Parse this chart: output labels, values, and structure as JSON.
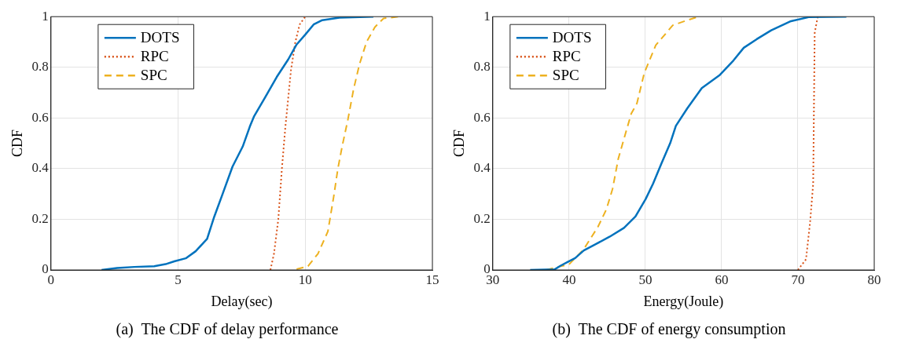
{
  "chart_data": [
    {
      "type": "line",
      "xlabel": "Delay(sec)",
      "ylabel": "CDF",
      "annotations": [
        "(a)  The CDF of delay performance"
      ],
      "xlim": [
        0,
        15
      ],
      "xticks": [
        0,
        5,
        10,
        15
      ],
      "ylim": [
        0,
        1
      ],
      "yticks": [
        0,
        0.2,
        0.4,
        0.6,
        0.8,
        1
      ],
      "grid": true,
      "legend": "top left",
      "series": [
        {
          "name": "DOTS",
          "color": "#0072bd",
          "line_style": "solid",
          "x": [
            1.99,
            2.6,
            3.28,
            4.06,
            4.51,
            4.85,
            5.3,
            5.69,
            6.14,
            6.42,
            6.75,
            7.14,
            7.54,
            7.82,
            7.98,
            8.43,
            8.88,
            9.33,
            9.66,
            10.0,
            10.33,
            10.67,
            11.34,
            12.68
          ],
          "values": [
            0,
            0.008,
            0.012,
            0.015,
            0.023,
            0.034,
            0.046,
            0.074,
            0.123,
            0.21,
            0.3,
            0.408,
            0.487,
            0.566,
            0.605,
            0.683,
            0.762,
            0.831,
            0.89,
            0.929,
            0.969,
            0.986,
            0.996,
            1
          ]
        },
        {
          "name": "RPC",
          "color": "#d95319",
          "line_style": "dotted",
          "x": [
            8.63,
            8.77,
            8.94,
            9.08,
            9.22,
            9.44,
            9.61,
            9.78,
            10.0
          ],
          "values": [
            0,
            0.064,
            0.2,
            0.398,
            0.566,
            0.79,
            0.9,
            0.969,
            1
          ]
        },
        {
          "name": "SPC",
          "color": "#edb120",
          "line_style": "dashed",
          "x": [
            9.66,
            10.11,
            10.5,
            10.89,
            11.12,
            11.28,
            11.45,
            11.68,
            11.9,
            12.13,
            12.41,
            12.74,
            13.08,
            13.7
          ],
          "values": [
            0.003,
            0.015,
            0.064,
            0.152,
            0.29,
            0.398,
            0.487,
            0.595,
            0.713,
            0.811,
            0.9,
            0.959,
            0.993,
            1
          ]
        }
      ]
    },
    {
      "type": "line",
      "xlabel": "Energy(Joule)",
      "ylabel": "CDF",
      "annotations": [
        "(b)  The CDF of energy consumption"
      ],
      "xlim": [
        30,
        80
      ],
      "xticks": [
        30,
        40,
        50,
        60,
        70,
        80
      ],
      "ylim": [
        0,
        1
      ],
      "yticks": [
        0,
        0.2,
        0.4,
        0.6,
        0.8,
        1
      ],
      "grid": true,
      "legend": "top left",
      "series": [
        {
          "name": "DOTS",
          "color": "#0072bd",
          "line_style": "solid",
          "x": [
            34.9,
            38.1,
            38.9,
            39.85,
            40.8,
            41.93,
            43.44,
            45.3,
            47.2,
            48.7,
            50.04,
            51.0,
            52.1,
            53.25,
            54.0,
            55.5,
            57.4,
            59.7,
            61.55,
            62.9,
            64.6,
            66.5,
            68.98,
            71.4,
            76.35
          ],
          "values": [
            0,
            0.002,
            0.017,
            0.032,
            0.047,
            0.077,
            0.101,
            0.131,
            0.166,
            0.211,
            0.28,
            0.34,
            0.42,
            0.5,
            0.569,
            0.638,
            0.718,
            0.768,
            0.827,
            0.877,
            0.911,
            0.946,
            0.981,
            0.998,
            1
          ]
        },
        {
          "name": "RPC",
          "color": "#d95319",
          "line_style": "dotted",
          "x": [
            70.0,
            71.06,
            71.6,
            72.0,
            72.1,
            72.2,
            72.6
          ],
          "values": [
            0,
            0.042,
            0.19,
            0.34,
            0.638,
            0.936,
            1
          ]
        },
        {
          "name": "SPC",
          "color": "#edb120",
          "line_style": "dashed",
          "x": [
            37.0,
            38.5,
            40.0,
            41.9,
            43.8,
            44.9,
            45.7,
            46.45,
            47.4,
            48.15,
            48.9,
            49.85,
            51.36,
            53.6,
            55.5,
            57.0
          ],
          "values": [
            0,
            0.012,
            0.022,
            0.081,
            0.171,
            0.24,
            0.32,
            0.439,
            0.539,
            0.617,
            0.658,
            0.777,
            0.887,
            0.966,
            0.986,
            1
          ]
        }
      ]
    }
  ]
}
